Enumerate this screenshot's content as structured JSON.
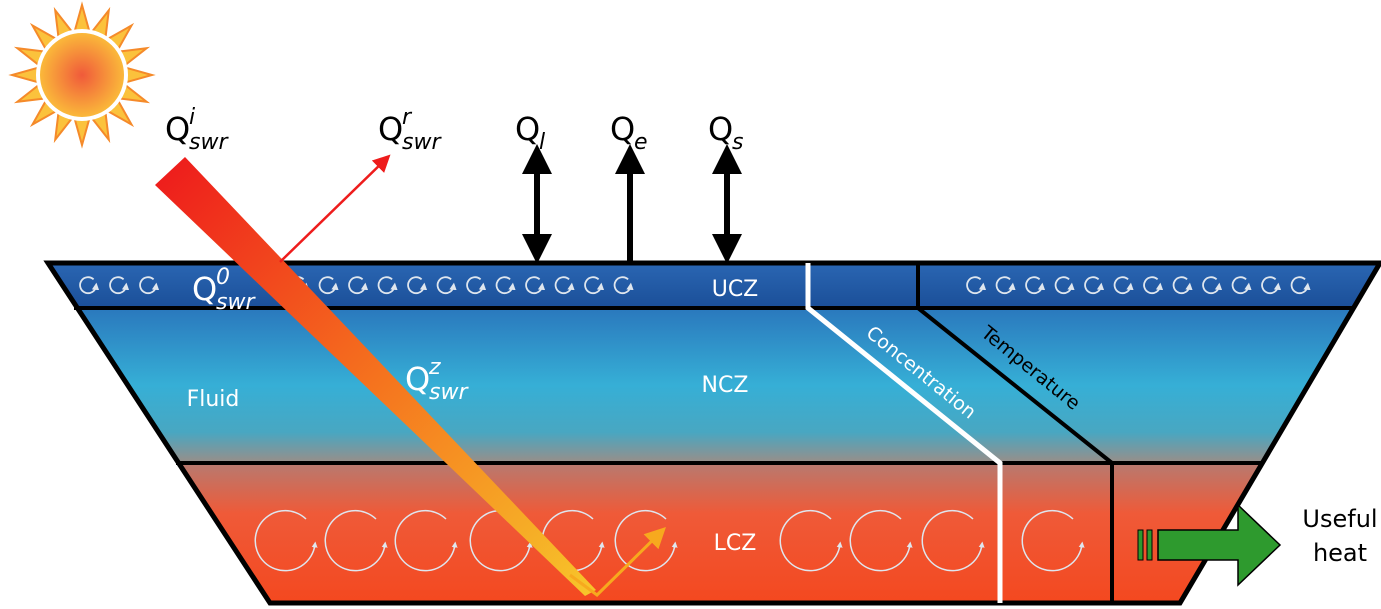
{
  "fluxes": [
    {
      "symbol": "Q",
      "sub": "swr",
      "sup": "i"
    },
    {
      "symbol": "Q",
      "sub": "swr",
      "sup": "r"
    },
    {
      "symbol": "Q",
      "sub": "l"
    },
    {
      "symbol": "Q",
      "sub": "e"
    },
    {
      "symbol": "Q",
      "sub": "s"
    },
    {
      "symbol": "Q",
      "sub": "swr",
      "sup": "0"
    },
    {
      "symbol": "Q",
      "sub": "swr",
      "sup": "z"
    }
  ],
  "zones": [
    "UCZ",
    "NCZ",
    "LCZ"
  ],
  "fluid_label": "Fluid",
  "profiles": [
    "Concentration",
    "Temperature"
  ],
  "output": [
    "Useful",
    "heat"
  ]
}
